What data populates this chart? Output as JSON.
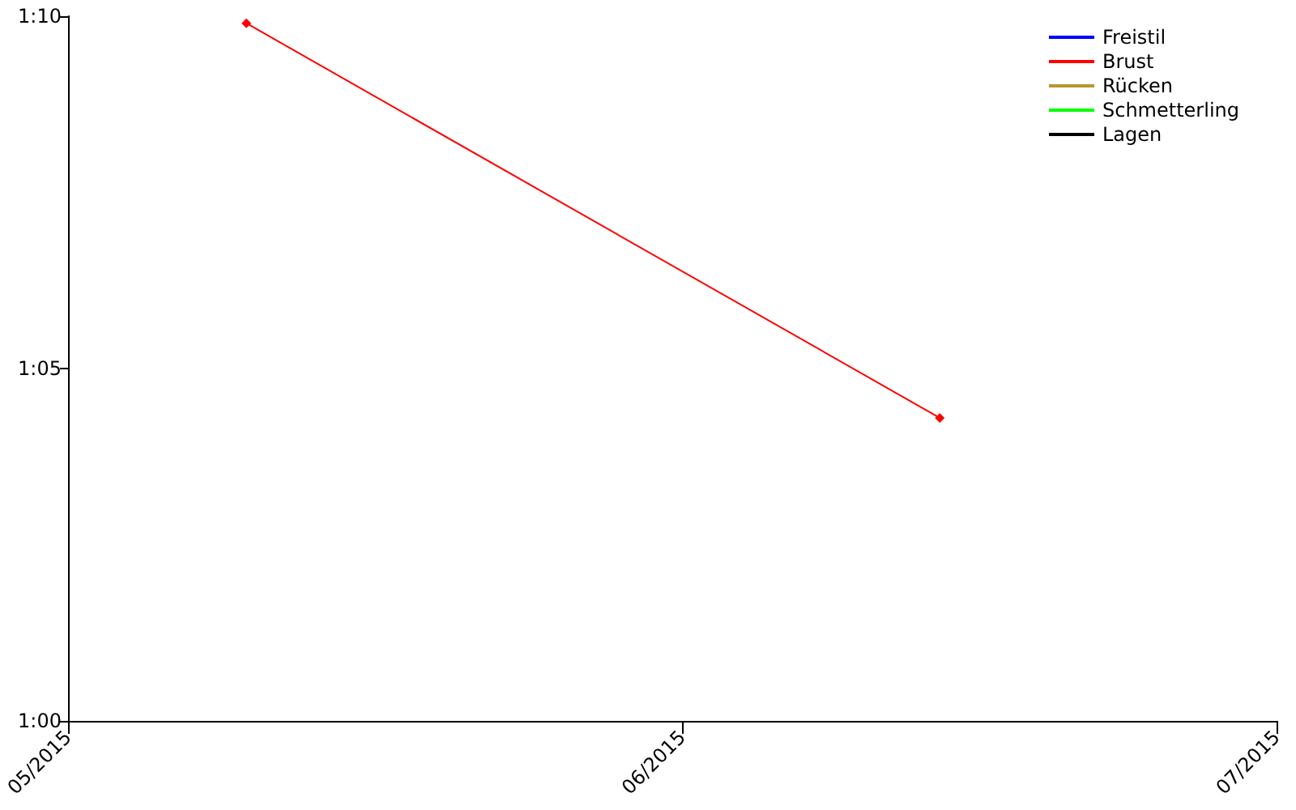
{
  "chart_data": {
    "type": "line",
    "x": [
      "2015-05-10",
      "2015-06-14"
    ],
    "series": [
      {
        "name": "Freistil",
        "color": "#0000ff",
        "values": [
          null,
          null
        ]
      },
      {
        "name": "Brust",
        "color": "#ff0000",
        "values": [
          69.9,
          64.3
        ]
      },
      {
        "name": "Rücken",
        "color": "#b8962e",
        "values": [
          null,
          null
        ]
      },
      {
        "name": "Schmetterling",
        "color": "#00ff00",
        "values": [
          null,
          null
        ]
      },
      {
        "name": "Lagen",
        "color": "#000000",
        "values": [
          null,
          null
        ]
      }
    ],
    "xlim": [
      "2015-05-01",
      "2015-07-01"
    ],
    "xticks": [
      {
        "value": "2015-05-01",
        "label": "05/2015"
      },
      {
        "value": "2015-06-01",
        "label": "06/2015"
      },
      {
        "value": "2015-07-01",
        "label": "07/2015"
      }
    ],
    "ylim": [
      60,
      70
    ],
    "yticks": [
      {
        "value": 60,
        "label": "1:00"
      },
      {
        "value": 65,
        "label": "1:05"
      },
      {
        "value": 70,
        "label": "1:10"
      }
    ],
    "grid": false,
    "legend": "top right",
    "marker": "diamond",
    "line_style": "solid"
  }
}
